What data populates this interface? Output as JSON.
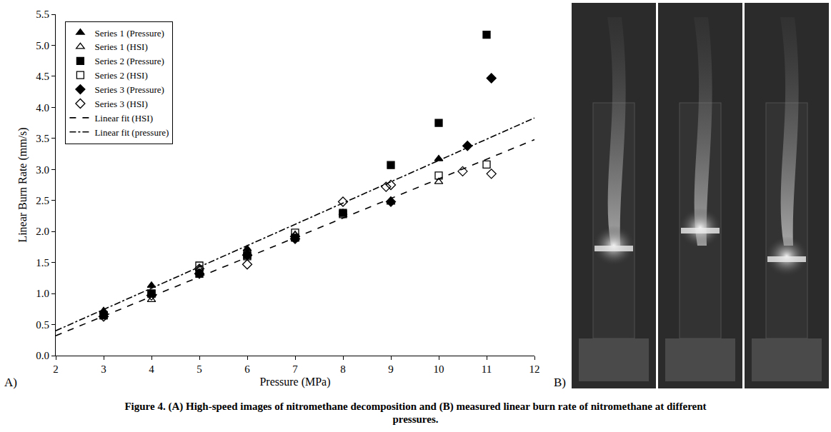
{
  "chart_data": {
    "type": "scatter",
    "x_label": "Pressure (MPa)",
    "y_label": "Linear Burn Rate (mm/s)",
    "xlim": [
      2,
      12
    ],
    "xticks": [
      2,
      3,
      4,
      5,
      6,
      7,
      8,
      9,
      10,
      11,
      12
    ],
    "ylim": [
      0,
      5.5
    ],
    "yticks": [
      {
        "value": 0,
        "label": "0.0"
      },
      0.5,
      {
        "value": 1,
        "label": "1.0"
      },
      1.5,
      {
        "value": 2,
        "label": "2.0"
      },
      2.5,
      {
        "value": 3,
        "label": "3.0"
      },
      3.5,
      {
        "value": 4,
        "label": "4.0"
      },
      4.5,
      {
        "value": 5,
        "label": "5.0"
      },
      5.5
    ],
    "grid": false,
    "legend": "top-left",
    "series": [
      {
        "name": "Series 1 (Pressure)",
        "color": "#000000",
        "marker": "triangle-up",
        "x": [
          3,
          4,
          6,
          7,
          9,
          10
        ],
        "values": [
          0.72,
          1.13,
          1.72,
          1.88,
          2.47,
          3.17
        ]
      },
      {
        "name": "Series 1 (HSI)",
        "color": "#000000",
        "marker": "triangle-up-open",
        "x": [
          3,
          4,
          5,
          6,
          7,
          8,
          9,
          10
        ],
        "values": [
          0.7,
          0.9,
          1.4,
          1.65,
          1.95,
          2.3,
          2.5,
          2.8
        ]
      },
      {
        "name": "Series 2 (Pressure)",
        "color": "#000000",
        "marker": "square",
        "x": [
          3,
          4,
          5,
          6,
          7,
          8,
          9,
          10,
          11
        ],
        "values": [
          0.65,
          1.0,
          1.32,
          1.62,
          1.9,
          2.3,
          3.07,
          3.75,
          5.17
        ]
      },
      {
        "name": "Series 2 (HSI)",
        "color": "#000000",
        "marker": "square-open",
        "x": [
          3,
          4,
          5,
          6,
          7,
          8,
          10,
          11
        ],
        "values": [
          0.65,
          1.0,
          1.45,
          1.6,
          1.98,
          2.28,
          2.9,
          3.08
        ]
      },
      {
        "name": "Series 3 (Pressure)",
        "color": "#000000",
        "marker": "diamond",
        "x": [
          5,
          6,
          7,
          9,
          10.6,
          11.1
        ],
        "values": [
          1.32,
          1.62,
          1.88,
          2.48,
          3.38,
          4.47
        ]
      },
      {
        "name": "Series 3 (HSI)",
        "color": "#000000",
        "marker": "diamond-open",
        "x": [
          3,
          4,
          5,
          6,
          7,
          8,
          8.9,
          9,
          10.5,
          11.1
        ],
        "values": [
          0.63,
          0.97,
          1.4,
          1.47,
          1.92,
          2.48,
          2.72,
          2.75,
          2.97,
          2.93
        ]
      },
      {
        "name": "Linear fit (HSI)",
        "type": "line",
        "line_style": "dash",
        "color": "#000000",
        "x": [
          2,
          12
        ],
        "values": [
          0.32,
          3.48
        ]
      },
      {
        "name": "Linear fit (pressure)",
        "type": "line",
        "line_style": "dashdot",
        "color": "#000000",
        "x": [
          2,
          12
        ],
        "values": [
          0.4,
          3.83
        ]
      }
    ]
  },
  "figure": {
    "panel_labels": [
      "A)",
      "B)"
    ],
    "caption": "Figure 4. (A) High-speed images of nitromethane decomposition and (B) measured linear burn rate of nitromethane at different pressures."
  }
}
